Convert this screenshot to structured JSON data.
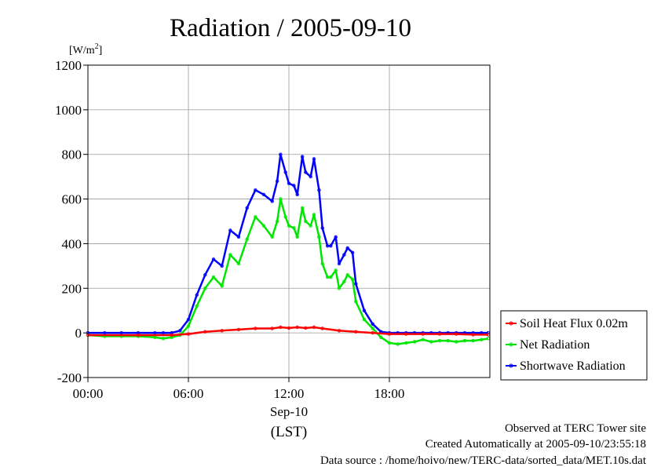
{
  "chart_data": {
    "type": "line",
    "title": "Radiation / 2005-09-10",
    "ylabel": "[W/m²]",
    "ylabel_base": "[W/m",
    "ylabel_sup": "2",
    "ylabel_close": "]",
    "ylim": [
      -200,
      1200
    ],
    "yticks": [
      -200,
      0,
      200,
      400,
      600,
      800,
      1000,
      1200
    ],
    "ytick_labels": [
      "-200",
      "0",
      "200",
      "400",
      "600",
      "800",
      "1000",
      "1200"
    ],
    "xlim": [
      0,
      24
    ],
    "xticks": [
      0,
      6,
      12,
      18
    ],
    "xtick_labels": [
      "00:00",
      "06:00",
      "12:00",
      "18:00"
    ],
    "xlabel_date": "Sep-10",
    "xlabel_unit": "(LST)",
    "grid": true,
    "legend_position": "right",
    "series": [
      {
        "name": "Soil Heat Flux 0.02m",
        "color": "#ff0000",
        "x": [
          0,
          3,
          5,
          6,
          7,
          8,
          9,
          10,
          11,
          11.5,
          12,
          12.5,
          13,
          13.5,
          14,
          15,
          16,
          17,
          18,
          19,
          20,
          21,
          22,
          23,
          23.9
        ],
        "y": [
          -10,
          -10,
          -10,
          -5,
          5,
          10,
          15,
          20,
          20,
          25,
          22,
          25,
          22,
          25,
          20,
          10,
          5,
          0,
          -5,
          -5,
          -5,
          -5,
          -5,
          -8,
          -8
        ]
      },
      {
        "name": "Net Radiation",
        "color": "#00e600",
        "x": [
          0,
          1,
          2,
          3,
          4,
          4.5,
          5,
          5.5,
          6,
          6.5,
          7,
          7.5,
          8,
          8.5,
          9,
          9.5,
          10,
          10.5,
          11,
          11.3,
          11.5,
          11.8,
          12,
          12.3,
          12.5,
          12.8,
          13,
          13.3,
          13.5,
          13.8,
          14,
          14.3,
          14.5,
          14.8,
          15,
          15.3,
          15.5,
          15.8,
          16,
          16.5,
          17,
          17.5,
          18,
          18.5,
          19,
          19.5,
          20,
          20.5,
          21,
          21.5,
          22,
          22.5,
          23,
          23.5,
          23.9
        ],
        "y": [
          -10,
          -15,
          -15,
          -15,
          -20,
          -25,
          -20,
          -10,
          30,
          120,
          200,
          250,
          210,
          350,
          310,
          420,
          520,
          480,
          430,
          500,
          600,
          520,
          480,
          470,
          430,
          560,
          500,
          480,
          530,
          430,
          310,
          250,
          250,
          280,
          200,
          230,
          260,
          240,
          140,
          60,
          20,
          -20,
          -45,
          -50,
          -45,
          -40,
          -30,
          -40,
          -35,
          -35,
          -40,
          -35,
          -35,
          -30,
          -25
        ]
      },
      {
        "name": "Shortwave Radiation",
        "color": "#0000ff",
        "x": [
          0,
          1,
          2,
          3,
          4,
          4.5,
          5,
          5.5,
          6,
          6.5,
          7,
          7.5,
          8,
          8.5,
          9,
          9.5,
          10,
          10.5,
          11,
          11.3,
          11.5,
          11.8,
          12,
          12.3,
          12.5,
          12.8,
          13,
          13.3,
          13.5,
          13.8,
          14,
          14.3,
          14.5,
          14.8,
          15,
          15.3,
          15.5,
          15.8,
          16,
          16.5,
          17,
          17.5,
          18,
          18.5,
          19,
          19.5,
          20,
          20.5,
          21,
          21.5,
          22,
          22.5,
          23,
          23.5,
          23.9
        ],
        "y": [
          0,
          0,
          0,
          0,
          0,
          0,
          0,
          10,
          60,
          170,
          260,
          330,
          300,
          460,
          430,
          560,
          640,
          620,
          590,
          680,
          800,
          720,
          670,
          660,
          620,
          790,
          720,
          700,
          780,
          640,
          470,
          390,
          390,
          430,
          310,
          350,
          380,
          360,
          220,
          100,
          40,
          5,
          0,
          0,
          0,
          0,
          0,
          0,
          0,
          0,
          0,
          0,
          0,
          0,
          0
        ]
      }
    ]
  },
  "footer": {
    "line1": "Observed at TERC Tower site",
    "line2": "Created Automatically at 2005-09-10/23:55:18",
    "line3": "Data source : /home/hoivo/new/TERC-data/sorted_data/MET.10s.dat"
  }
}
